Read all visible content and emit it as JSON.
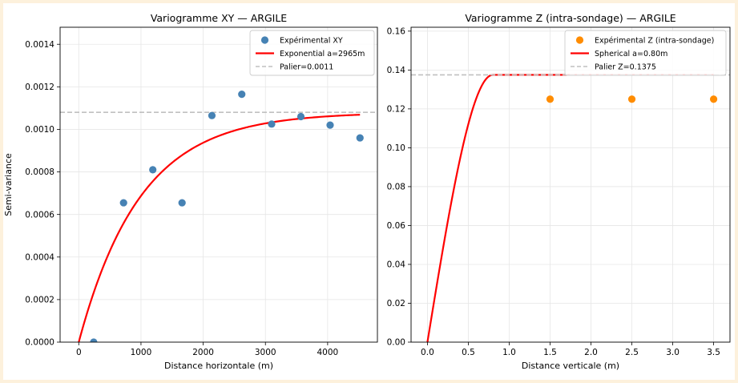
{
  "chart_data": [
    {
      "type": "scatter",
      "title": "Variogramme XY — ARGILE",
      "xlabel": "Distance horizontale (m)",
      "ylabel": "Semi-variance",
      "xlim": [
        -300,
        4800
      ],
      "ylim": [
        0,
        0.00148
      ],
      "xticks": [
        0,
        1000,
        2000,
        3000,
        4000
      ],
      "xtick_labels": [
        "0",
        "1000",
        "2000",
        "3000",
        "4000"
      ],
      "yticks": [
        0,
        0.0002,
        0.0004,
        0.0006,
        0.0008,
        0.001,
        0.0012,
        0.0014
      ],
      "ytick_labels": [
        "0.0000",
        "0.0002",
        "0.0004",
        "0.0006",
        "0.0008",
        "0.0010",
        "0.0012",
        "0.0014"
      ],
      "grid": true,
      "legend_position": "top-right",
      "series": [
        {
          "name": "Expérimental XY",
          "kind": "scatter",
          "color": "#4682b4",
          "x": [
            240,
            720,
            1190,
            1660,
            2140,
            2620,
            3100,
            3570,
            4040,
            4520
          ],
          "y": [
            0.0,
            0.000655,
            0.00081,
            0.000655,
            0.001065,
            0.001165,
            0.001025,
            0.00106,
            0.00102,
            0.00096
          ]
        },
        {
          "name": "Exponential  a=2965m",
          "kind": "model-exponential",
          "color": "#ff0000",
          "sill": 0.00108,
          "range": 2965,
          "x_start": 0,
          "x_end": 4520
        },
        {
          "name": "Palier=0.0011",
          "kind": "hline",
          "color": "#c0c0c0",
          "y": 0.00108
        }
      ]
    },
    {
      "type": "scatter",
      "title": "Variogramme Z (intra-sondage) — ARGILE",
      "xlabel": "Distance verticale (m)",
      "ylabel": "",
      "xlim": [
        -0.2,
        3.7
      ],
      "ylim": [
        0,
        0.162
      ],
      "xticks": [
        0,
        0.5,
        1,
        1.5,
        2,
        2.5,
        3,
        3.5
      ],
      "xtick_labels": [
        "0.0",
        "0.5",
        "1.0",
        "1.5",
        "2.0",
        "2.5",
        "3.0",
        "3.5"
      ],
      "yticks": [
        0,
        0.02,
        0.04,
        0.06,
        0.08,
        0.1,
        0.12,
        0.14,
        0.16
      ],
      "ytick_labels": [
        "0.00",
        "0.02",
        "0.04",
        "0.06",
        "0.08",
        "0.10",
        "0.12",
        "0.14",
        "0.16"
      ],
      "grid": true,
      "legend_position": "top-right",
      "series": [
        {
          "name": "Expérimental Z (intra-sondage)",
          "kind": "scatter",
          "color": "#ff8c00",
          "x": [
            1.5,
            2.5,
            3.5
          ],
          "y": [
            0.125,
            0.125,
            0.125
          ]
        },
        {
          "name": "Spherical  a=0.80m",
          "kind": "model-spherical",
          "color": "#ff0000",
          "sill": 0.1375,
          "range": 0.8,
          "x_start": 0,
          "x_end": 3.5
        },
        {
          "name": "Palier Z=0.1375",
          "kind": "hline",
          "color": "#c0c0c0",
          "y": 0.1375
        }
      ]
    }
  ]
}
